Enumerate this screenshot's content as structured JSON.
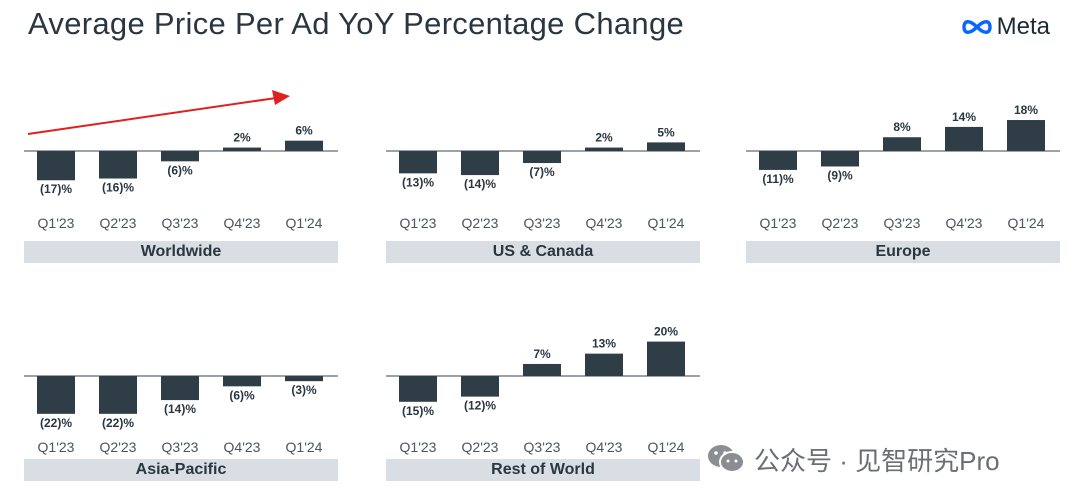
{
  "title": "Average Price Per Ad YoY Percentage Change",
  "logo": {
    "text": "Meta",
    "icon": "meta-infinity-logo"
  },
  "watermark": {
    "text": "公众号 · 见智研究Pro",
    "icon": "wechat-icon"
  },
  "colors": {
    "bar": "#2f3d47",
    "strip": "#d8dee4",
    "text": "#2a3640",
    "arrow": "#e02020",
    "logo": "#0866ff"
  },
  "chart_data": [
    {
      "type": "bar",
      "title": "Worldwide",
      "categories": [
        "Q1'23",
        "Q2'23",
        "Q3'23",
        "Q4'23",
        "Q1'24"
      ],
      "values": [
        -17,
        -16,
        -6,
        2,
        6
      ],
      "labels": [
        "(17)%",
        "(16)%",
        "(6)%",
        "2%",
        "6%"
      ],
      "annotation": "upward-trend-arrow"
    },
    {
      "type": "bar",
      "title": "US & Canada",
      "categories": [
        "Q1'23",
        "Q2'23",
        "Q3'23",
        "Q4'23",
        "Q1'24"
      ],
      "values": [
        -13,
        -14,
        -7,
        2,
        5
      ],
      "labels": [
        "(13)%",
        "(14)%",
        "(7)%",
        "2%",
        "5%"
      ]
    },
    {
      "type": "bar",
      "title": "Europe",
      "categories": [
        "Q1'23",
        "Q2'23",
        "Q3'23",
        "Q4'23",
        "Q1'24"
      ],
      "values": [
        -11,
        -9,
        8,
        14,
        18
      ],
      "labels": [
        "(11)%",
        "(9)%",
        "8%",
        "14%",
        "18%"
      ]
    },
    {
      "type": "bar",
      "title": "Asia-Pacific",
      "categories": [
        "Q1'23",
        "Q2'23",
        "Q3'23",
        "Q4'23",
        "Q1'24"
      ],
      "values": [
        -22,
        -22,
        -14,
        -6,
        -3
      ],
      "labels": [
        "(22)%",
        "(22)%",
        "(14)%",
        "(6)%",
        "(3)%"
      ]
    },
    {
      "type": "bar",
      "title": "Rest of World",
      "categories": [
        "Q1'23",
        "Q2'23",
        "Q3'23",
        "Q4'23",
        "Q1'24"
      ],
      "values": [
        -15,
        -12,
        7,
        13,
        20
      ],
      "labels": [
        "(15)%",
        "(12)%",
        "7%",
        "13%",
        "20%"
      ]
    }
  ]
}
